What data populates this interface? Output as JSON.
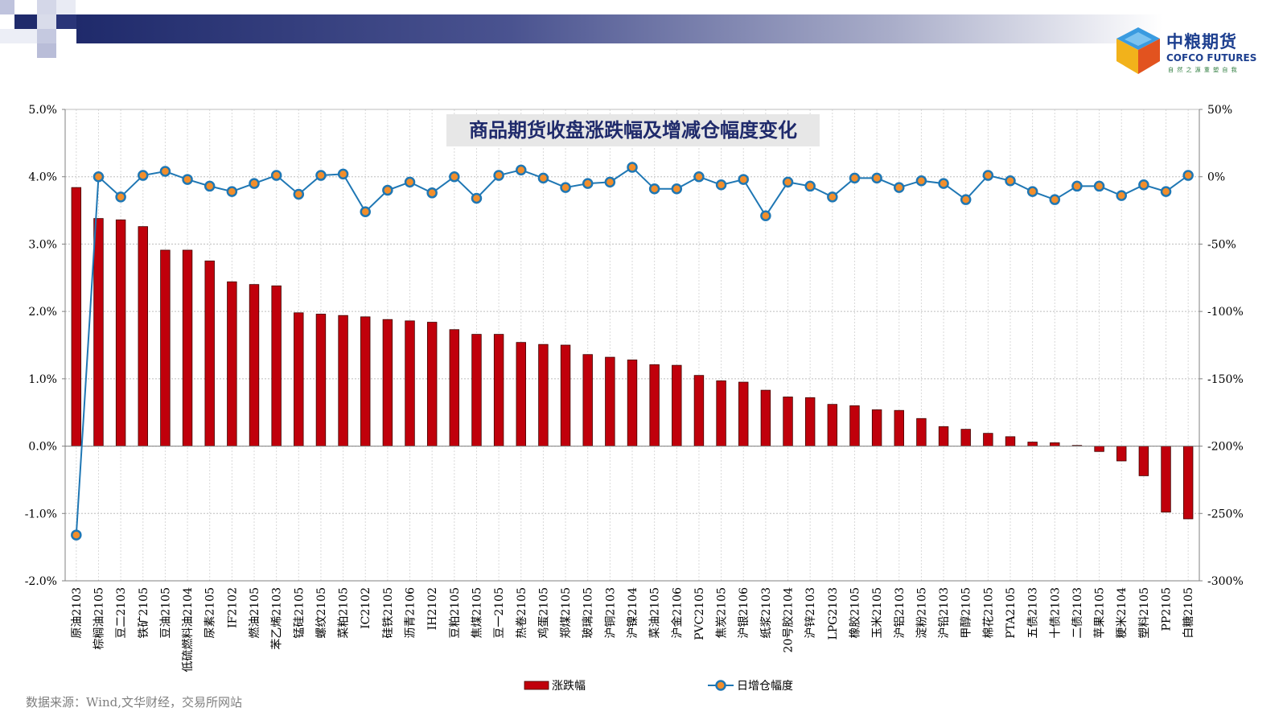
{
  "logo": {
    "name_cn": "中粮期货",
    "name_en": "COFCO FUTURES",
    "slogan": "自 然 之 源   重 塑 自 我"
  },
  "source_text": "数据来源：Wind,文华财经，交易所网站",
  "colors": {
    "bar": "#c0000b",
    "bar_edge": "#400000",
    "line": "#1f77b4",
    "marker_fill": "#f28e2b",
    "title_bg": "#e7e7e7",
    "title_text": "#1f2a6b"
  },
  "chart_data": {
    "type": "bar",
    "title": "商品期货收盘涨跌幅及增减仓幅度变化",
    "legend_position": "bottom",
    "grid": true,
    "left_axis": {
      "range": [
        -2.0,
        5.0
      ],
      "ticks": [
        5.0,
        4.0,
        3.0,
        2.0,
        1.0,
        0.0,
        -1.0,
        -2.0
      ],
      "tick_labels": [
        "5.0%",
        "4.0%",
        "3.0%",
        "2.0%",
        "1.0%",
        "0.0%",
        "-1.0%",
        "-2.0%"
      ]
    },
    "right_axis": {
      "range": [
        -300,
        50
      ],
      "ticks": [
        50,
        0,
        -50,
        -100,
        -150,
        -200,
        -250,
        -300
      ],
      "tick_labels": [
        "50%",
        "0%",
        "-50%",
        "-100%",
        "-150%",
        "-200%",
        "-250%",
        "-300%"
      ]
    },
    "categories": [
      "原油2103",
      "棕榈油2105",
      "豆二2103",
      "铁矿2105",
      "豆油2105",
      "低硫燃料油2104",
      "尿素2105",
      "IF2102",
      "燃油2105",
      "苯乙烯2103",
      "锰硅2105",
      "螺纹2105",
      "菜粕2105",
      "IC2102",
      "硅铁2105",
      "沥青2106",
      "IH2102",
      "豆粕2105",
      "焦煤2105",
      "豆一2105",
      "热卷2105",
      "鸡蛋2105",
      "郑煤2105",
      "玻璃2105",
      "沪铜2103",
      "沪镍2104",
      "菜油2105",
      "沪金2106",
      "PVC2105",
      "焦炭2105",
      "沪银2106",
      "纸浆2103",
      "20号胶2104",
      "沪锌2103",
      "LPG2103",
      "橡胶2105",
      "玉米2105",
      "沪铝2103",
      "淀粉2105",
      "沪铅2103",
      "甲醇2105",
      "棉花2105",
      "PTA2105",
      "五债2103",
      "十债2103",
      "二债2103",
      "苹果2105",
      "粳米2104",
      "塑料2105",
      "PP2105",
      "白糖2105"
    ],
    "series": [
      {
        "name": "涨跌幅",
        "type": "bar",
        "axis": "left",
        "values": [
          3.84,
          3.38,
          3.36,
          3.26,
          2.91,
          2.91,
          2.75,
          2.44,
          2.4,
          2.38,
          1.98,
          1.96,
          1.94,
          1.92,
          1.88,
          1.86,
          1.84,
          1.73,
          1.66,
          1.66,
          1.54,
          1.51,
          1.5,
          1.36,
          1.32,
          1.28,
          1.21,
          1.2,
          1.05,
          0.97,
          0.95,
          0.83,
          0.73,
          0.72,
          0.62,
          0.6,
          0.54,
          0.53,
          0.41,
          0.29,
          0.25,
          0.19,
          0.14,
          0.06,
          0.05,
          0.01,
          -0.08,
          -0.22,
          -0.44,
          -0.98,
          -1.08
        ]
      },
      {
        "name": "日增仓幅度",
        "type": "line",
        "axis": "right",
        "values": [
          -266,
          0,
          -15,
          1,
          4,
          -2,
          -7,
          -11,
          -5,
          1,
          -13,
          1,
          2,
          -26,
          -10,
          -4,
          -12,
          0,
          -16,
          1,
          5,
          -1,
          -8,
          -5,
          -4,
          7,
          -9,
          -9,
          0,
          -6,
          -2,
          -29,
          -4,
          -7,
          -15,
          -1,
          -1,
          -8,
          -3,
          -5,
          -17,
          1,
          -3,
          -11,
          -17,
          -7,
          -7,
          -14,
          -6,
          -11,
          1
        ]
      }
    ]
  }
}
